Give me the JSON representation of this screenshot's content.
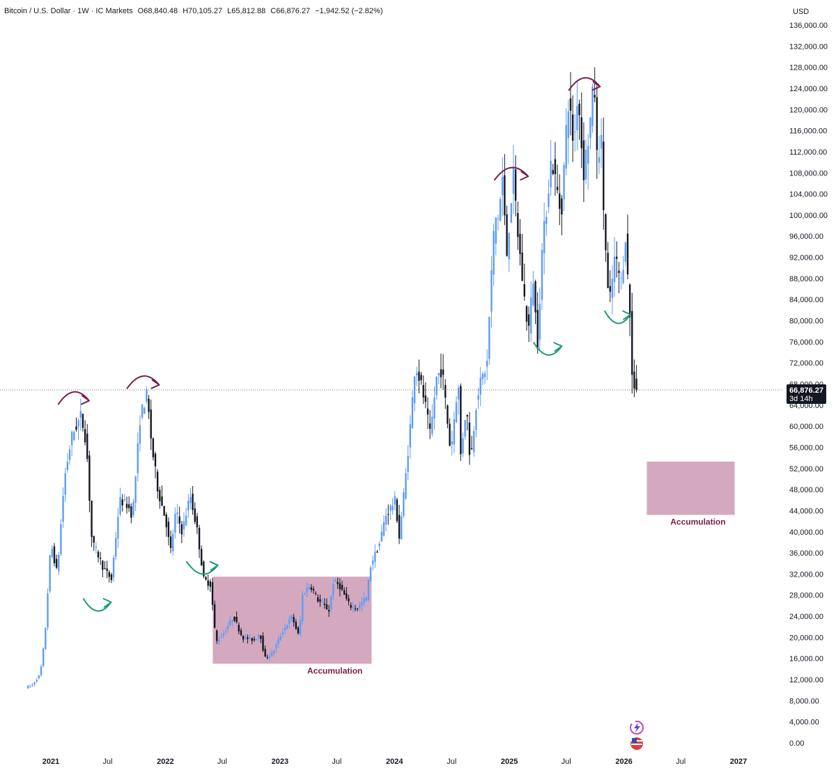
{
  "header": {
    "symbol": "Bitcoin / U.S. Dollar · 1W · IC Markets",
    "open": "O68,840.48",
    "high": "H70,105.27",
    "low": "L65,812.88",
    "close": "C66,876.27",
    "change": "−1,942.52 (−2.82%)"
  },
  "currency": "USD",
  "price_label": {
    "price": "66,876.27",
    "countdown": "3d 14h"
  },
  "zone_label": "Accumulation",
  "colors": {
    "up_candle": "#5b9cf6",
    "down_candle": "#131722",
    "zone_fill": "#d4a9bf",
    "top_arrow": "#7a1f4a",
    "bottom_arrow": "#1a9a7a",
    "price_badge": "#131722"
  },
  "icons": [
    "lightning-spark-icon",
    "us-flag-icon"
  ],
  "chart_data": {
    "type": "candlestick",
    "title": "",
    "xlabel": "",
    "ylabel": "",
    "ylim": [
      0,
      136000
    ],
    "y_ticks": [
      "136,000.00",
      "132,000.00",
      "128,000.00",
      "124,000.00",
      "120,000.00",
      "116,000.00",
      "112,000.00",
      "108,000.00",
      "104,000.00",
      "100,000.00",
      "96,000.00",
      "92,000.00",
      "88,000.00",
      "84,000.00",
      "80,000.00",
      "76,000.00",
      "72,000.00",
      "68,000.00",
      "64,000.00",
      "60,000.00",
      "56,000.00",
      "52,000.00",
      "48,000.00",
      "44,000.00",
      "40,000.00",
      "36,000.00",
      "32,000.00",
      "28,000.00",
      "24,000.00",
      "20,000.00",
      "16,000.00",
      "12,000.00",
      "8,000.00",
      "4,000.00",
      "0.00"
    ],
    "x_ticks": [
      {
        "label": "2021",
        "date": "2021-01-01",
        "major": true
      },
      {
        "label": "Jul",
        "date": "2021-07-01",
        "major": false
      },
      {
        "label": "2022",
        "date": "2022-01-01",
        "major": true
      },
      {
        "label": "Jul",
        "date": "2022-07-01",
        "major": false
      },
      {
        "label": "2023",
        "date": "2023-01-01",
        "major": true
      },
      {
        "label": "Jul",
        "date": "2023-07-01",
        "major": false
      },
      {
        "label": "2024",
        "date": "2024-01-01",
        "major": true
      },
      {
        "label": "Jul",
        "date": "2024-07-01",
        "major": false
      },
      {
        "label": "2025",
        "date": "2025-01-01",
        "major": true
      },
      {
        "label": "Jul",
        "date": "2025-07-01",
        "major": false
      },
      {
        "label": "2026",
        "date": "2026-01-01",
        "major": true
      },
      {
        "label": "Jul",
        "date": "2026-07-01",
        "major": false
      },
      {
        "label": "2027",
        "date": "2027-01-01",
        "major": true
      }
    ],
    "current_price": 66876.27,
    "price_path": [
      [
        "2020-10-20",
        10500
      ],
      [
        "2020-11-10",
        11000
      ],
      [
        "2020-12-05",
        13000
      ],
      [
        "2020-12-20",
        20000
      ],
      [
        "2021-01-08",
        38000
      ],
      [
        "2021-01-28",
        32000
      ],
      [
        "2021-02-20",
        50000
      ],
      [
        "2021-03-15",
        58000
      ],
      [
        "2021-04-14",
        62000
      ],
      [
        "2021-05-01",
        57000
      ],
      [
        "2021-05-19",
        38000
      ],
      [
        "2021-06-05",
        36000
      ],
      [
        "2021-06-25",
        33000
      ],
      [
        "2021-07-20",
        31000
      ],
      [
        "2021-08-15",
        46000
      ],
      [
        "2021-09-10",
        45000
      ],
      [
        "2021-09-25",
        43000
      ],
      [
        "2021-10-20",
        62000
      ],
      [
        "2021-11-10",
        66000
      ],
      [
        "2021-11-26",
        56000
      ],
      [
        "2021-12-15",
        48000
      ],
      [
        "2022-01-10",
        42000
      ],
      [
        "2022-01-24",
        36000
      ],
      [
        "2022-02-10",
        44000
      ],
      [
        "2022-03-02",
        40000
      ],
      [
        "2022-03-28",
        47000
      ],
      [
        "2022-04-20",
        40000
      ],
      [
        "2022-05-10",
        31000
      ],
      [
        "2022-06-01",
        30000
      ],
      [
        "2022-06-18",
        19000
      ],
      [
        "2022-07-15",
        21000
      ],
      [
        "2022-08-13",
        24000
      ],
      [
        "2022-09-10",
        20000
      ],
      [
        "2022-10-20",
        19500
      ],
      [
        "2022-11-05",
        21000
      ],
      [
        "2022-11-21",
        16000
      ],
      [
        "2022-12-15",
        17000
      ],
      [
        "2023-01-15",
        21000
      ],
      [
        "2023-02-15",
        24000
      ],
      [
        "2023-03-10",
        20000
      ],
      [
        "2023-03-20",
        28000
      ],
      [
        "2023-04-14",
        30000
      ],
      [
        "2023-05-10",
        27000
      ],
      [
        "2023-06-15",
        25000
      ],
      [
        "2023-06-25",
        30500
      ],
      [
        "2023-07-15",
        30000
      ],
      [
        "2023-08-18",
        26000
      ],
      [
        "2023-09-11",
        25500
      ],
      [
        "2023-10-10",
        27500
      ],
      [
        "2023-10-25",
        34000
      ],
      [
        "2023-11-20",
        37500
      ],
      [
        "2023-12-10",
        43000
      ],
      [
        "2024-01-10",
        46000
      ],
      [
        "2024-01-23",
        39000
      ],
      [
        "2024-02-15",
        52000
      ],
      [
        "2024-03-01",
        62000
      ],
      [
        "2024-03-14",
        72000
      ],
      [
        "2024-04-01",
        68000
      ],
      [
        "2024-04-15",
        64000
      ],
      [
        "2024-05-01",
        58000
      ],
      [
        "2024-05-20",
        69000
      ],
      [
        "2024-06-07",
        71000
      ],
      [
        "2024-07-05",
        55000
      ],
      [
        "2024-07-29",
        69000
      ],
      [
        "2024-08-05",
        54000
      ],
      [
        "2024-08-24",
        64000
      ],
      [
        "2024-09-06",
        53000
      ],
      [
        "2024-09-27",
        66000
      ],
      [
        "2024-10-29",
        72000
      ],
      [
        "2024-11-11",
        88000
      ],
      [
        "2024-11-22",
        99000
      ],
      [
        "2024-12-05",
        100000
      ],
      [
        "2024-12-17",
        107000
      ],
      [
        "2024-12-30",
        92000
      ],
      [
        "2025-01-20",
        108000
      ],
      [
        "2025-02-03",
        97000
      ],
      [
        "2025-02-25",
        84000
      ],
      [
        "2025-03-10",
        78000
      ],
      [
        "2025-03-25",
        88000
      ],
      [
        "2025-04-07",
        75000
      ],
      [
        "2025-04-22",
        93000
      ],
      [
        "2025-05-22",
        111000
      ],
      [
        "2025-06-22",
        100000
      ],
      [
        "2025-07-14",
        122000
      ],
      [
        "2025-08-02",
        113000
      ],
      [
        "2025-08-14",
        124000
      ],
      [
        "2025-09-01",
        108000
      ],
      [
        "2025-09-20",
        116000
      ],
      [
        "2025-10-06",
        126000
      ],
      [
        "2025-10-12",
        110000
      ],
      [
        "2025-10-27",
        115000
      ],
      [
        "2025-11-05",
        100000
      ],
      [
        "2025-11-21",
        82000
      ],
      [
        "2025-12-10",
        92000
      ],
      [
        "2025-12-31",
        87000
      ],
      [
        "2026-01-14",
        97000
      ],
      [
        "2026-01-20",
        88000
      ],
      [
        "2026-02-01",
        76000
      ],
      [
        "2026-02-06",
        60000
      ],
      [
        "2026-02-10",
        68000
      ],
      [
        "2026-02-16",
        66876.27
      ]
    ],
    "zones": [
      {
        "label": "Accumulation",
        "from": "2022-06-01",
        "to": "2023-10-20",
        "low": 15000,
        "high": 31500
      },
      {
        "label": "Accumulation",
        "from": "2026-03-15",
        "to": "2026-12-20",
        "low": 43200,
        "high": 53300
      }
    ],
    "annotations": [
      {
        "type": "top-arrow",
        "from": "2021-01-25",
        "to": "2021-05-01",
        "y": 65500
      },
      {
        "type": "top-arrow",
        "from": "2021-09-01",
        "to": "2021-12-10",
        "y": 68500
      },
      {
        "type": "bottom-arrow",
        "from": "2021-04-15",
        "to": "2021-07-10",
        "y": 26000
      },
      {
        "type": "bottom-arrow",
        "from": "2022-03-10",
        "to": "2022-06-15",
        "y": 33000
      },
      {
        "type": "top-arrow",
        "from": "2024-11-15",
        "to": "2025-02-28",
        "y": 108000
      },
      {
        "type": "top-arrow",
        "from": "2025-07-10",
        "to": "2025-10-15",
        "y": 125000
      },
      {
        "type": "bottom-arrow",
        "from": "2025-03-20",
        "to": "2025-06-15",
        "y": 74500
      },
      {
        "type": "bottom-arrow",
        "from": "2025-11-01",
        "to": "2026-01-20",
        "y": 80500
      }
    ]
  }
}
